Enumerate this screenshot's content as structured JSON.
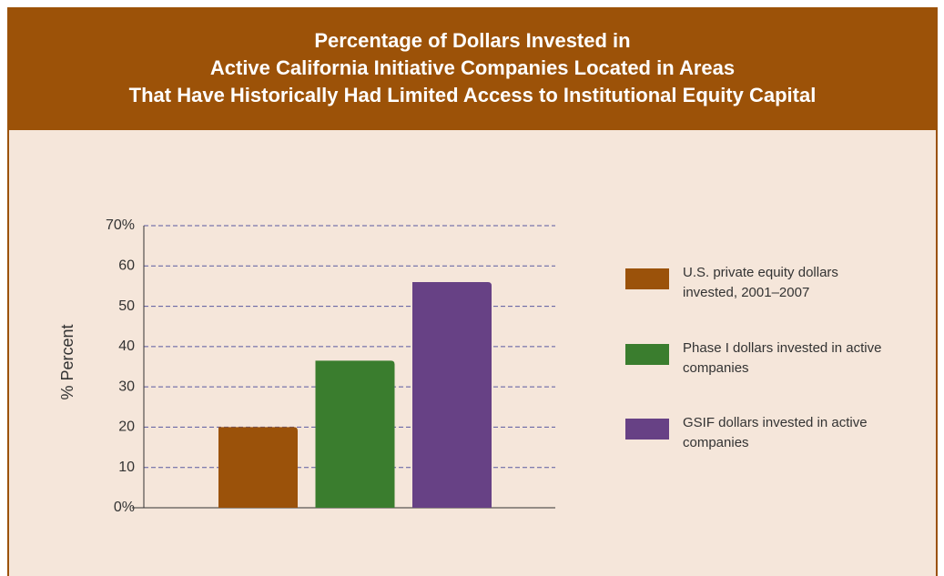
{
  "chart_data": {
    "type": "bar",
    "title": [
      "Percentage of Dollars Invested in",
      "Active California Initiative Companies Located in Areas",
      "That Have Historically Had Limited Access to Institutional Equity Capital"
    ],
    "y_label": "% Percent",
    "series": [
      {
        "name": "U.S. private equity dollars invested, 2001–2007",
        "color": "#9b520a",
        "values": [
          20
        ]
      },
      {
        "name": "Phase I dollars invested in active companies",
        "color": "#3a7d2e",
        "values": [
          36.5
        ]
      },
      {
        "name": "GSIF dollars invested in active companies",
        "color": "#674185",
        "values": [
          56
        ]
      }
    ],
    "ylim": [
      0,
      70
    ],
    "yticks": [
      {
        "value": 0,
        "label": "0%"
      },
      10,
      20,
      30,
      40,
      50,
      60,
      {
        "value": 70,
        "label": "70%"
      }
    ],
    "grid": true,
    "legend": "right"
  }
}
